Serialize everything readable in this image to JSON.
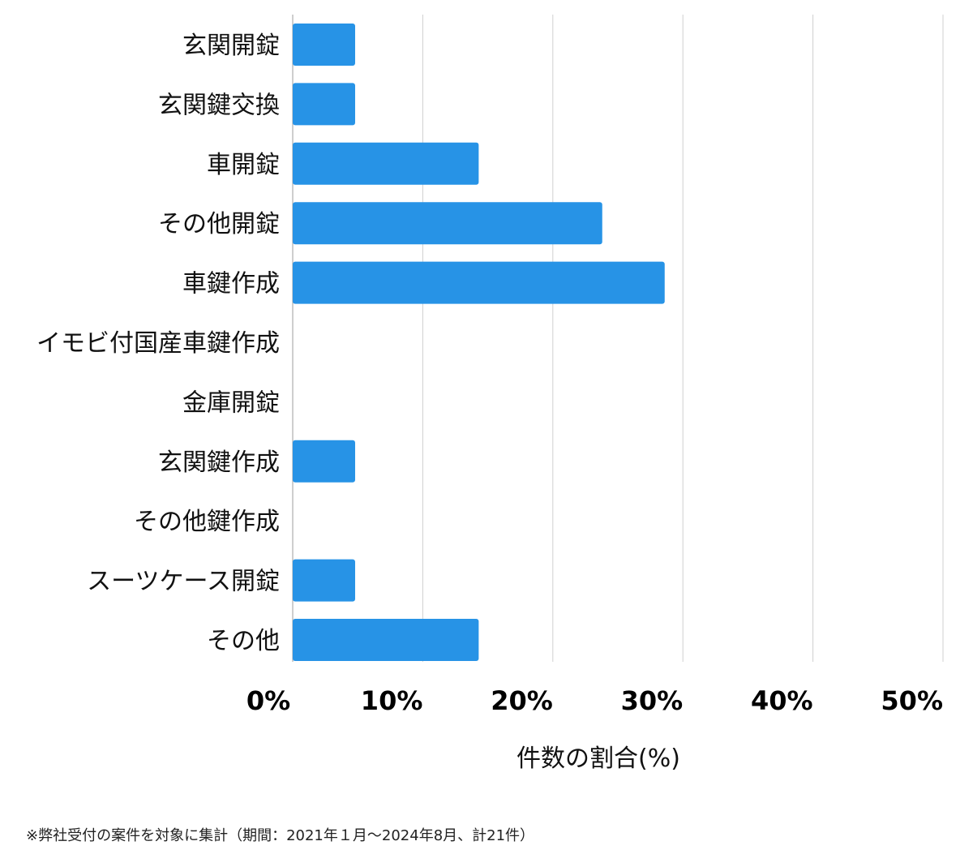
{
  "colors": {
    "bar": "#2793e6",
    "grid": "#d0d0d0",
    "axis": "#bdbdbd"
  },
  "chart_data": {
    "type": "bar",
    "orientation": "horizontal",
    "categories": [
      "玄関開錠",
      "玄関鍵交換",
      "車開錠",
      "その他開錠",
      "車鍵作成",
      "イモビ付国産車鍵作成",
      "金庫開錠",
      "玄関鍵作成",
      "その他鍵作成",
      "スーツケース開錠",
      "その他"
    ],
    "values": [
      4.8,
      4.8,
      14.3,
      23.8,
      28.6,
      0,
      0,
      4.8,
      0,
      4.8,
      14.3
    ],
    "xlim": [
      0,
      50
    ],
    "xticks": [
      0,
      10,
      20,
      30,
      40,
      50
    ],
    "tick_labels": [
      "0%",
      "10%",
      "20%",
      "30%",
      "40%",
      "50%"
    ],
    "xlabel": "件数の割合(%)",
    "grid": true
  },
  "footnote": "※弊社受付の案件を対象に集計（期間：2021年１月〜2024年8月、計21件）"
}
